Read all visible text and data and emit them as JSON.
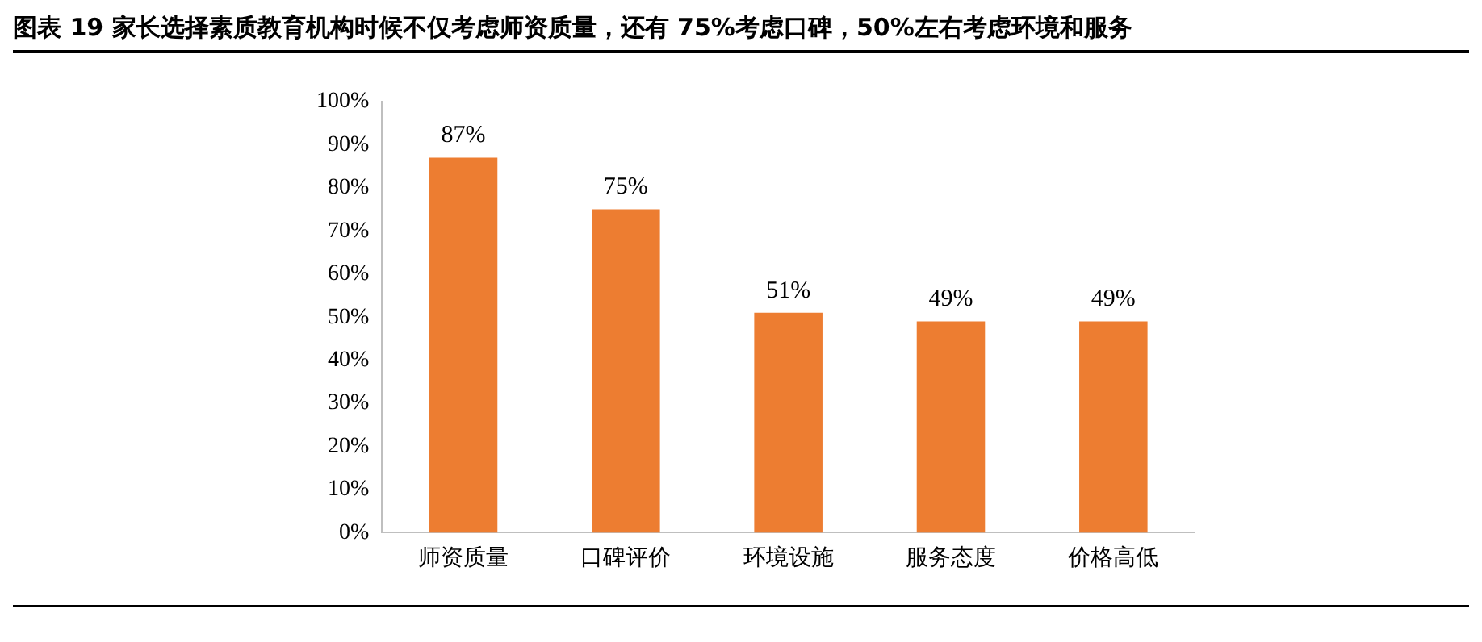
{
  "chart_data": {
    "type": "bar",
    "title": "图表 19 家长选择素质教育机构时候不仅考虑师资质量，还有 75%考虑口碑，50%左右考虑环境和服务",
    "categories": [
      "师资质量",
      "口碑评价",
      "环境设施",
      "服务态度",
      "价格高低"
    ],
    "values": [
      87,
      75,
      51,
      49,
      49
    ],
    "value_labels": [
      "87%",
      "75%",
      "51%",
      "49%",
      "49%"
    ],
    "color": "#ed7d31",
    "ylim": [
      0,
      100
    ],
    "yticks": [
      {
        "value": 0,
        "label": "0%"
      },
      {
        "value": 10,
        "label": "10%"
      },
      {
        "value": 20,
        "label": "20%"
      },
      {
        "value": 30,
        "label": "30%"
      },
      {
        "value": 40,
        "label": "40%"
      },
      {
        "value": 50,
        "label": "50%"
      },
      {
        "value": 60,
        "label": "60%"
      },
      {
        "value": 70,
        "label": "70%"
      },
      {
        "value": 80,
        "label": "80%"
      },
      {
        "value": 90,
        "label": "90%"
      },
      {
        "value": 100,
        "label": "100%"
      }
    ],
    "grid": false,
    "legend": false
  }
}
